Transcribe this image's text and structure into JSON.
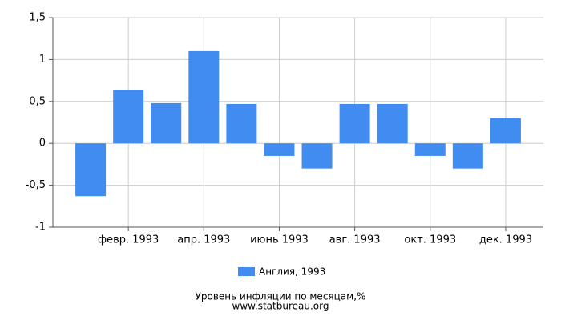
{
  "chart_data": {
    "type": "bar",
    "title": "Уровень инфляции по месяцам,%",
    "subtitle": "www.statbureau.org",
    "categories": [
      null,
      "февр. 1993",
      null,
      "апр. 1993",
      null,
      "июнь 1993",
      null,
      "авг. 1993",
      null,
      "окт. 1993",
      null,
      "дек. 1993"
    ],
    "series": [
      {
        "name": "Англия, 1993",
        "color": "#418cf0",
        "values": [
          -0.63,
          0.64,
          0.48,
          1.1,
          0.47,
          -0.15,
          -0.3,
          0.47,
          0.47,
          -0.15,
          -0.3,
          0.3
        ]
      }
    ],
    "ylim": [
      -1,
      1.5
    ],
    "yticks": [
      -1,
      {
        "value": -0.5,
        "label": "-0,5"
      },
      0,
      {
        "value": 0.5,
        "label": "0,5"
      },
      1,
      {
        "value": 1.5,
        "label": "1,5"
      }
    ],
    "grid": true
  }
}
